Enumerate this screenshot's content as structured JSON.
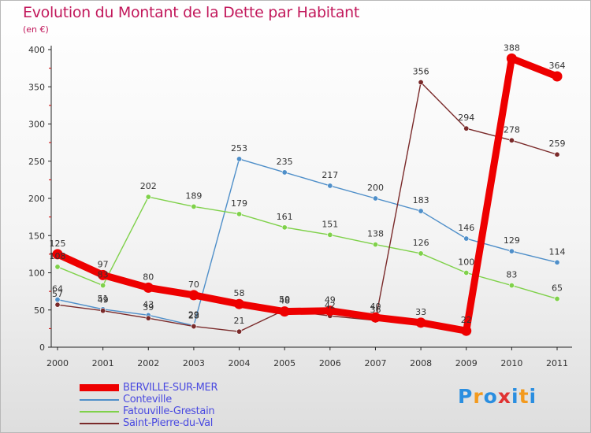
{
  "chart_data": {
    "type": "line",
    "title": "Evolution du Montant de la Dette par Habitant",
    "subtitle": "(en €)",
    "x": [
      "2000",
      "2001",
      "2002",
      "2003",
      "2004",
      "2005",
      "2006",
      "2007",
      "2008",
      "2009",
      "2010",
      "2011"
    ],
    "ylim": [
      0,
      400
    ],
    "yticks": [
      "0",
      "50",
      "100",
      "150",
      "200",
      "250",
      "300",
      "350",
      "400"
    ],
    "series": [
      {
        "name": "BERVILLE-SUR-MER",
        "color": "#ee0000",
        "values": [
          125,
          97,
          80,
          70,
          58,
          48,
          49,
          40,
          33,
          22,
          388,
          364
        ]
      },
      {
        "name": "Conteville",
        "color": "#4f8fc9",
        "values": [
          64,
          51,
          43,
          29,
          253,
          235,
          217,
          200,
          183,
          146,
          129,
          114
        ]
      },
      {
        "name": "Fatouville-Grestain",
        "color": "#7fd14a",
        "values": [
          108,
          83,
          202,
          189,
          179,
          161,
          151,
          138,
          126,
          100,
          83,
          65
        ]
      },
      {
        "name": "Saint-Pierre-du-Val",
        "color": "#7a2a2a",
        "values": [
          57,
          49,
          39,
          28,
          21,
          50,
          42,
          36,
          356,
          294,
          278,
          259
        ]
      }
    ],
    "data_labels": [
      [
        "125",
        "97",
        "80",
        "70",
        "58",
        "48",
        "49",
        "40",
        "33",
        "22",
        "388",
        "364"
      ],
      [
        "64",
        "51",
        "43",
        "29",
        "253",
        "235",
        "217",
        "200",
        "183",
        "146",
        "129",
        "114"
      ],
      [
        "108",
        "83",
        "202",
        "189",
        "179",
        "161",
        "151",
        "138",
        "126",
        "100",
        "83",
        "65"
      ],
      [
        "57",
        "49",
        "39",
        "28",
        "21",
        "50",
        "42",
        "36",
        "356",
        "294",
        "278",
        "259"
      ]
    ]
  },
  "logo": {
    "letters": [
      "P",
      "r",
      "o",
      "x",
      "i",
      "t",
      "i"
    ],
    "colors": [
      "#2a8ee0",
      "#f39a1e",
      "#2a8ee0",
      "#e03232",
      "#2a8ee0",
      "#f39a1e",
      "#2a8ee0"
    ]
  }
}
